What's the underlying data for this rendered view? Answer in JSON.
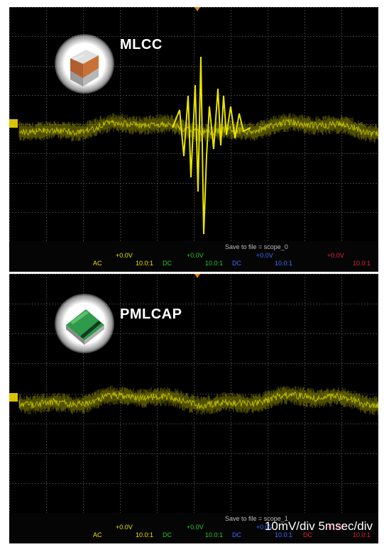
{
  "panels": [
    {
      "chip_label": "MLCC",
      "save_text": "Save to file = scope_0",
      "channels": [
        {
          "offset": "+0.0V",
          "coupling": "AC",
          "ratio": "10.0:1",
          "color": "#e6e600"
        },
        {
          "offset": "+0.0V",
          "coupling": "DC",
          "ratio": "10.0:1",
          "color": "#22cc22"
        },
        {
          "offset": "+0.0V",
          "coupling": "DC",
          "ratio": "10.0:1",
          "color": "#3f6cff"
        },
        {
          "offset": "+0.0V",
          "coupling": "",
          "ratio": "10.0:1",
          "color": "#e0243a"
        }
      ]
    },
    {
      "chip_label": "PMLCAP",
      "save_text": "Save to file = scope_1",
      "channels": [
        {
          "offset": "+0.0V",
          "coupling": "AC",
          "ratio": "10.0:1",
          "color": "#e6e600"
        },
        {
          "offset": "+0.0V",
          "coupling": "DC",
          "ratio": "10.0:1",
          "color": "#22cc22"
        },
        {
          "offset": "+0.0V",
          "coupling": "DC",
          "ratio": "10.0:1",
          "color": "#3f6cff"
        },
        {
          "offset": "+0.0V",
          "coupling": "DC",
          "ratio": "10.0:1",
          "color": "#e0243a"
        }
      ]
    }
  ],
  "scale_note": "10mV/div 5msec/div",
  "colors": {
    "trace": "#e8e400",
    "grid": "#3a3a3a",
    "marker": "#e08a00"
  }
}
